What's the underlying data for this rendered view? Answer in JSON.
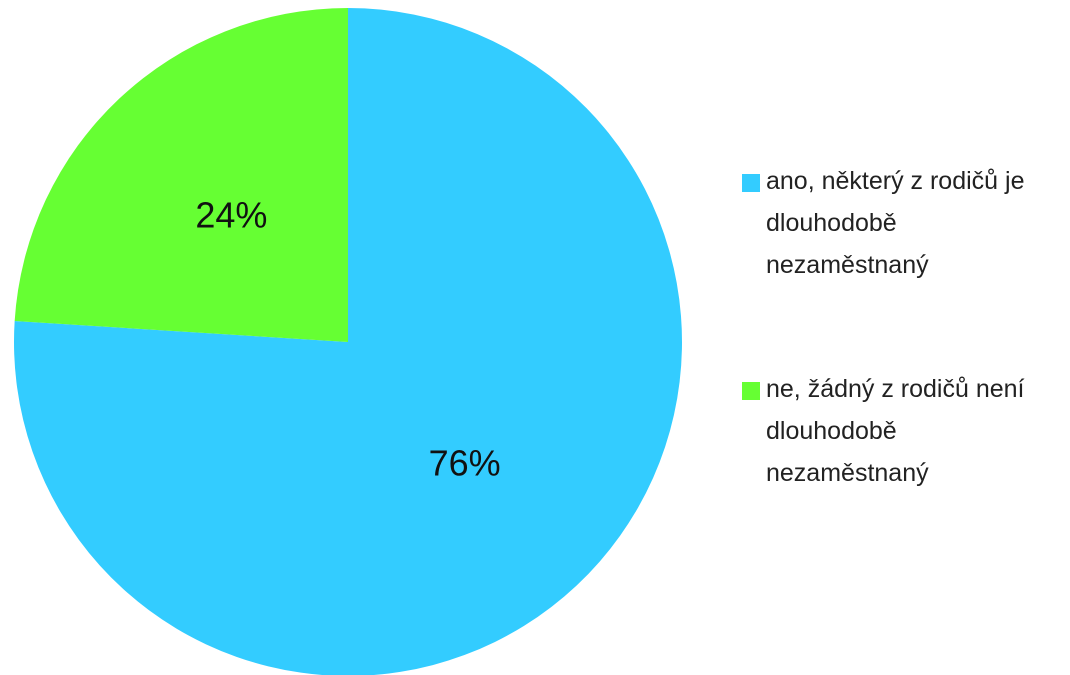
{
  "chart_data": {
    "type": "pie",
    "categories": [
      "ano, některý z rodičů je dlouhodobě nezaměstnaný",
      "ne, žádný z rodičů není dlouhodobě nezaměstnaný"
    ],
    "values": [
      76,
      24
    ],
    "value_labels": [
      "76%",
      "24%"
    ],
    "colors": [
      "#33ccff",
      "#66ff33"
    ],
    "legend": "right"
  }
}
